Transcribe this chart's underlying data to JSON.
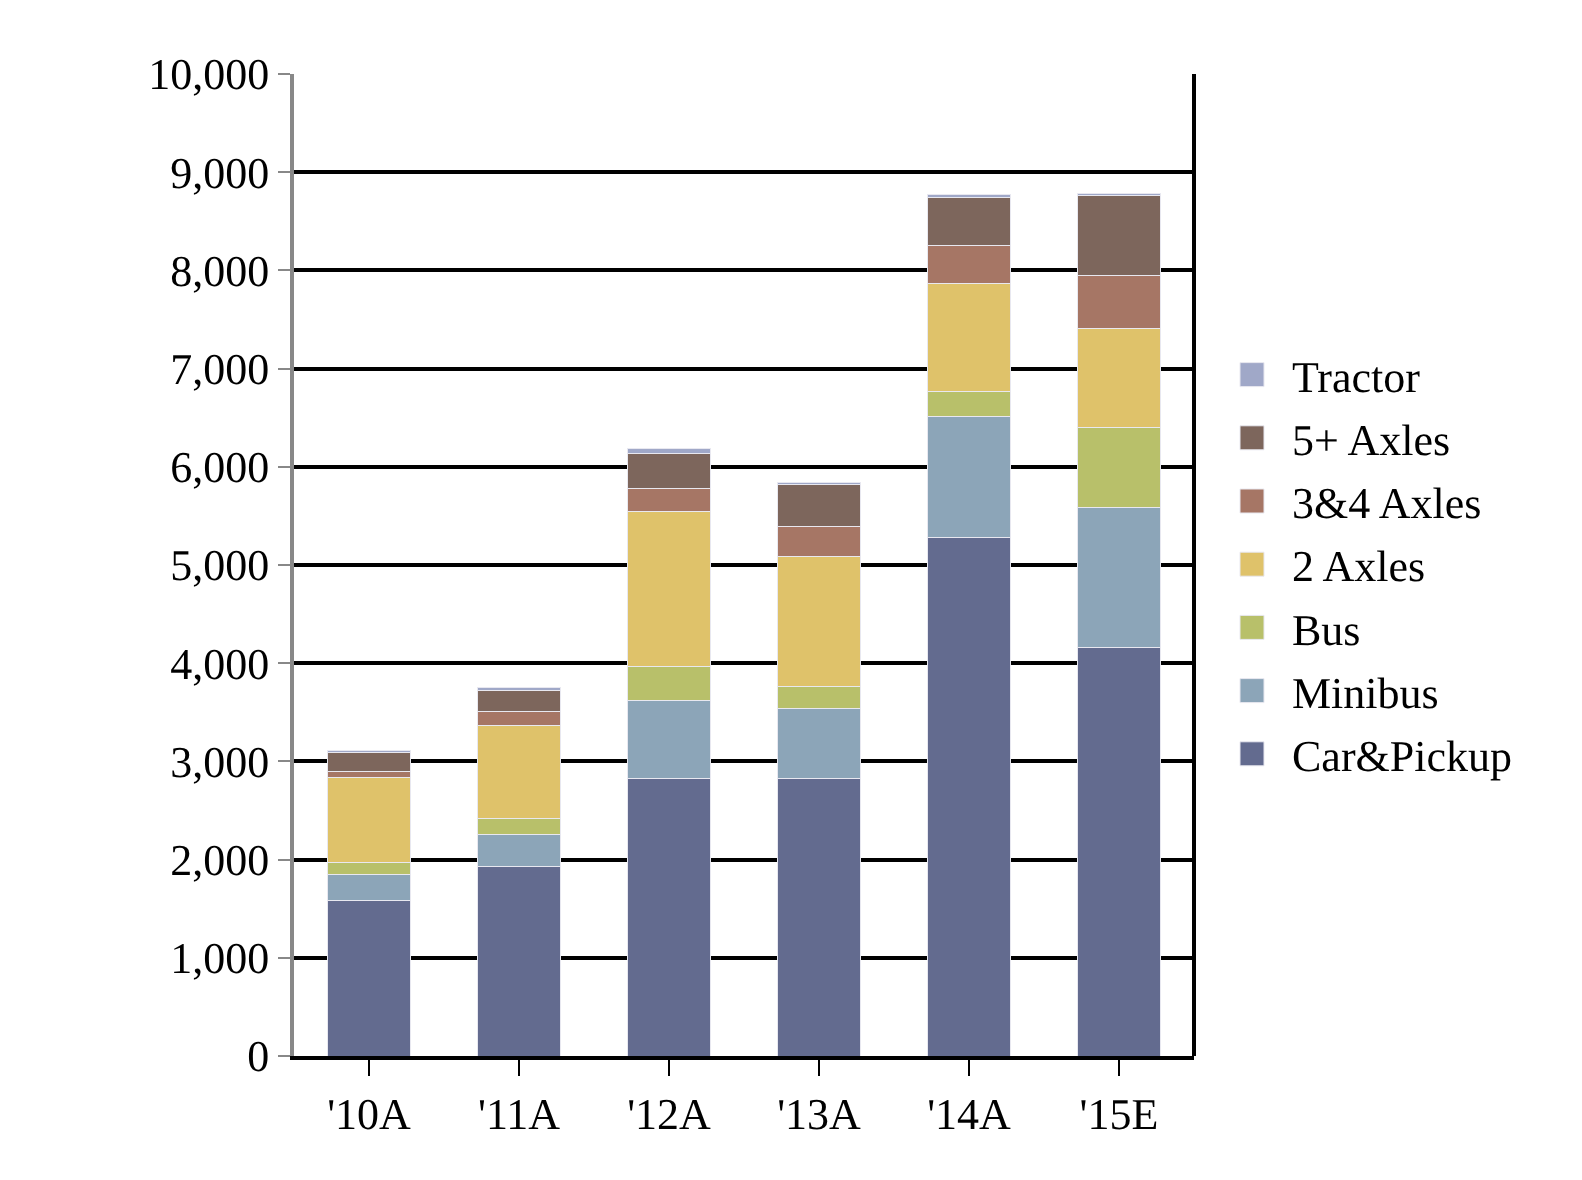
{
  "chart_data": {
    "type": "bar",
    "stacked": true,
    "categories": [
      "'10A",
      "'11A",
      "'12A",
      "'13A",
      "'14A",
      "'15E"
    ],
    "series": [
      {
        "name": "Car&Pickup",
        "color": "#636b8f",
        "values": [
          1580,
          1930,
          2825,
          2825,
          5285,
          4165
        ]
      },
      {
        "name": "Minibus",
        "color": "#8ca5b8",
        "values": [
          270,
          325,
          800,
          710,
          1230,
          1420
        ]
      },
      {
        "name": "Bus",
        "color": "#b8c06a",
        "values": [
          120,
          165,
          345,
          225,
          250,
          815
        ]
      },
      {
        "name": "2 Axles",
        "color": "#dfc26a",
        "values": [
          870,
          950,
          1570,
          1330,
          1100,
          1010
        ]
      },
      {
        "name": "3&4 Axles",
        "color": "#a67665",
        "values": [
          55,
          140,
          240,
          305,
          385,
          540
        ]
      },
      {
        "name": "5+ Axles",
        "color": "#7d665c",
        "values": [
          200,
          210,
          360,
          420,
          490,
          810
        ]
      },
      {
        "name": "Tractor",
        "color": "#a0a8c8",
        "values": [
          20,
          30,
          50,
          30,
          30,
          20
        ]
      }
    ],
    "ylim": [
      0,
      10000
    ],
    "yticks": [
      {
        "value": 0,
        "label": "0"
      },
      {
        "value": 1000,
        "label": "1,000"
      },
      {
        "value": 2000,
        "label": "2,000"
      },
      {
        "value": 3000,
        "label": "3,000"
      },
      {
        "value": 4000,
        "label": "4,000"
      },
      {
        "value": 5000,
        "label": "5,000"
      },
      {
        "value": 6000,
        "label": "6,000"
      },
      {
        "value": 7000,
        "label": "7,000"
      },
      {
        "value": 8000,
        "label": "8,000"
      },
      {
        "value": 9000,
        "label": "9,000"
      },
      {
        "value": 10000,
        "label": "10,000"
      }
    ],
    "grid": "y",
    "legend": "right"
  }
}
